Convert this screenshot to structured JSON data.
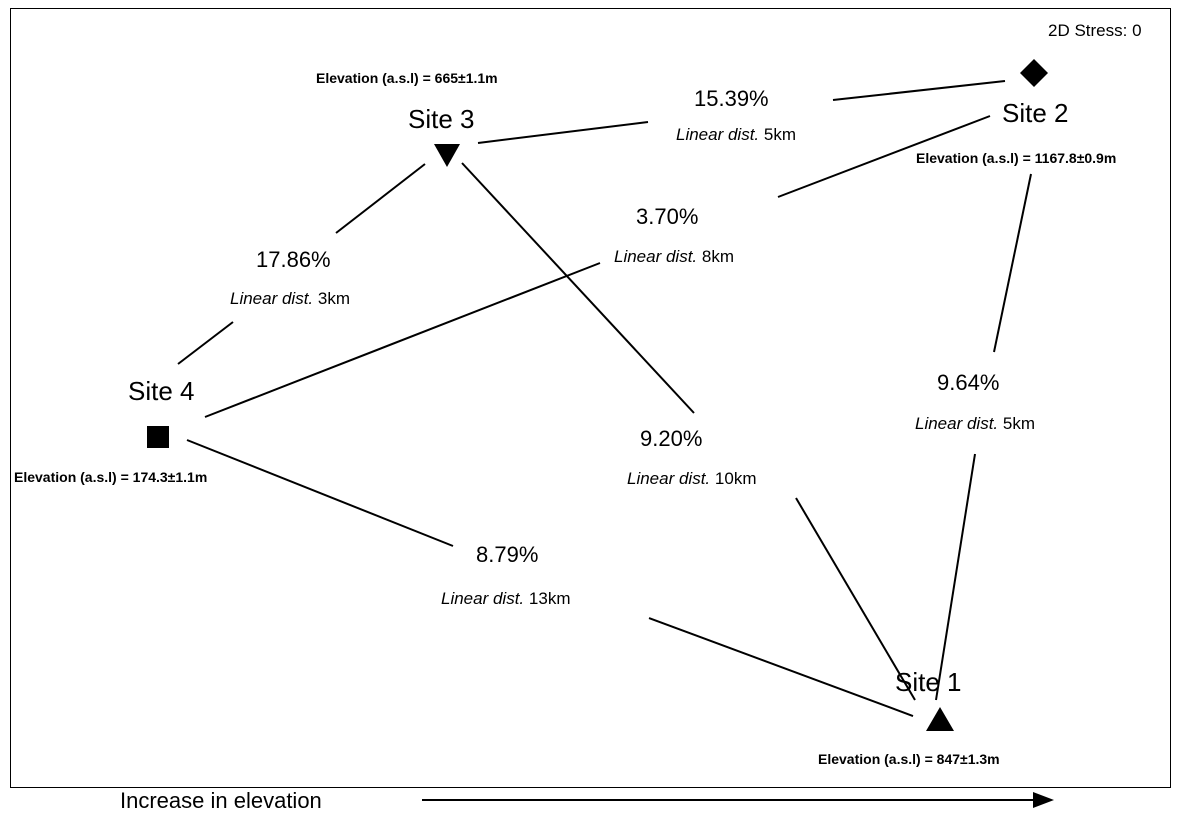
{
  "stress_label": "2D Stress: 0",
  "sites": [
    {
      "id": "site1",
      "name": "Site 1",
      "marker": "triangle-up",
      "elevation": "Elevation (a.s.l) = 847±1.3m"
    },
    {
      "id": "site2",
      "name": "Site 2",
      "marker": "diamond",
      "elevation": "Elevation (a.s.l) = 1167.8±0.9m"
    },
    {
      "id": "site3",
      "name": "Site 3",
      "marker": "triangle-down",
      "elevation": "Elevation (a.s.l) = 665±1.1m"
    },
    {
      "id": "site4",
      "name": "Site 4",
      "marker": "square",
      "elevation": "Elevation (a.s.l) = 174.3±1.1m"
    }
  ],
  "links": [
    {
      "from": "Site 3",
      "to": "Site 2",
      "percent": "15.39%",
      "dist_label": "Linear dist.",
      "dist_value": "5km"
    },
    {
      "from": "Site 4",
      "to": "Site 2",
      "percent": "3.70%",
      "dist_label": "Linear dist.",
      "dist_value": "8km"
    },
    {
      "from": "Site 4",
      "to": "Site 3",
      "percent": "17.86%",
      "dist_label": "Linear dist.",
      "dist_value": "3km"
    },
    {
      "from": "Site 3",
      "to": "Site 1",
      "percent": "9.20%",
      "dist_label": "Linear dist.",
      "dist_value": "10km"
    },
    {
      "from": "Site 2",
      "to": "Site 1",
      "percent": "9.64%",
      "dist_label": "Linear dist.",
      "dist_value": "5km"
    },
    {
      "from": "Site 4",
      "to": "Site 1",
      "percent": "8.79%",
      "dist_label": "Linear dist.",
      "dist_value": "13km"
    }
  ],
  "footer": {
    "label": "Increase in elevation"
  }
}
